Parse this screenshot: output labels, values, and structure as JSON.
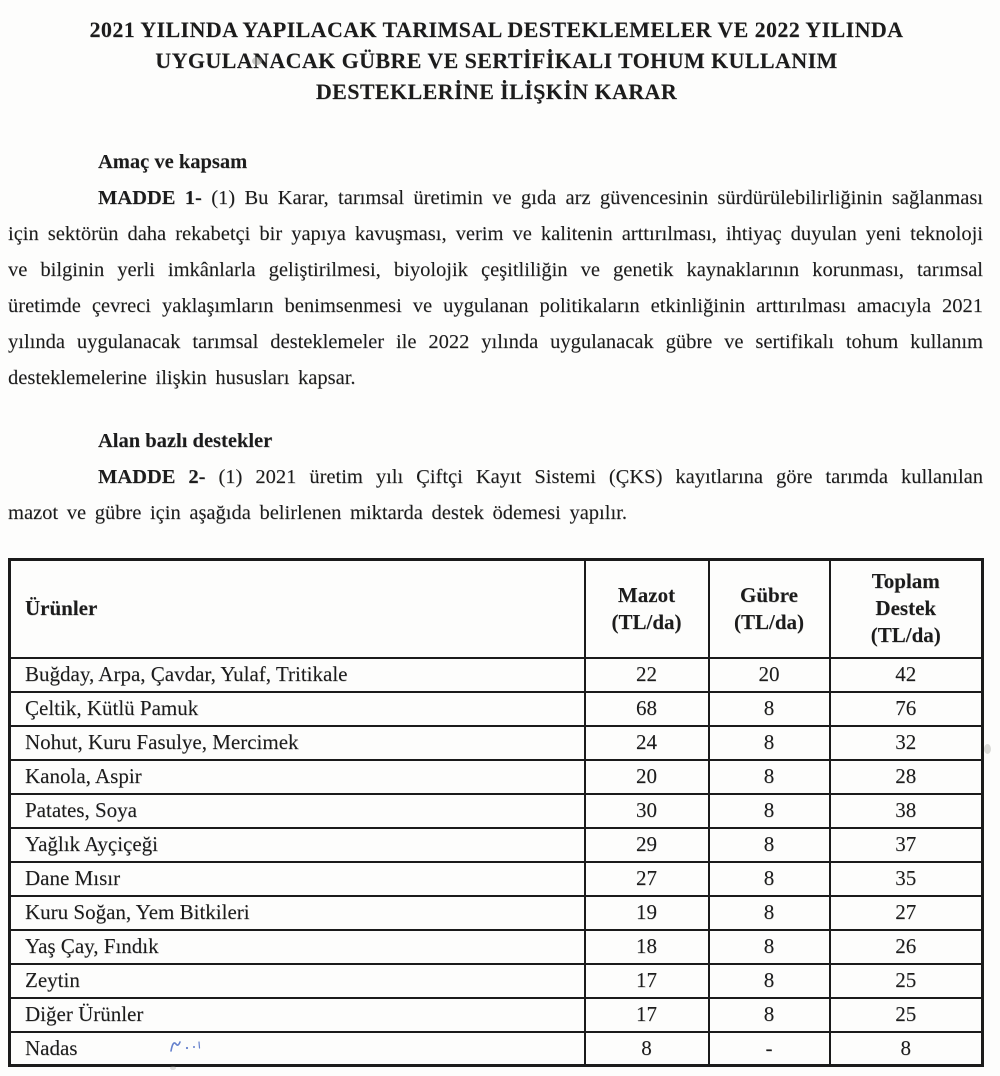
{
  "page": {
    "title_lines": [
      "2021 YILINDA YAPILACAK TARIMSAL DESTEKLEMELER VE 2022 YILINDA",
      "UYGULANACAK GÜBRE VE SERTİFİKALI TOHUM KULLANIM",
      "DESTEKLERİNE İLİŞKİN KARAR"
    ],
    "sections": [
      {
        "heading": "Amaç ve kapsam",
        "lead": "MADDE 1-",
        "body": " (1) Bu Karar, tarımsal üretimin ve gıda arz güvencesinin sürdürülebilirliğinin sağlanması için sektörün daha rekabetçi bir yapıya kavuşması, verim ve kalitenin arttırılması, ihtiyaç duyulan yeni teknoloji ve bilginin yerli imkânlarla geliştirilmesi, biyolojik çeşitliliğin ve genetik kaynaklarının korunması, tarımsal üretimde çevreci yaklaşımların benimsenmesi ve uygulanan politikaların etkinliğinin arttırılması amacıyla 2021 yılında uygulanacak tarımsal desteklemeler ile 2022 yılında uygulanacak gübre ve sertifikalı tohum kullanım desteklemelerine ilişkin hususları kapsar."
      },
      {
        "heading": "Alan bazlı destekler",
        "lead": "MADDE 2-",
        "body": " (1) 2021 üretim yılı Çiftçi Kayıt Sistemi (ÇKS) kayıtlarına göre tarımda kullanılan mazot ve gübre için aşağıda belirlenen miktarda destek ödemesi yapılır."
      }
    ],
    "table": {
      "headers": [
        "Ürünler",
        "Mazot\n(TL/da)",
        "Gübre\n(TL/da)",
        "Toplam\nDestek\n(TL/da)"
      ],
      "rows": [
        [
          "Buğday, Arpa, Çavdar, Yulaf, Tritikale",
          "22",
          "20",
          "42"
        ],
        [
          "Çeltik, Kütlü Pamuk",
          "68",
          "8",
          "76"
        ],
        [
          "Nohut, Kuru Fasulye, Mercimek",
          "24",
          "8",
          "32"
        ],
        [
          "Kanola, Aspir",
          "20",
          "8",
          "28"
        ],
        [
          "Patates, Soya",
          "30",
          "8",
          "38"
        ],
        [
          "Yağlık Ayçiçeği",
          "29",
          "8",
          "37"
        ],
        [
          "Dane Mısır",
          "27",
          "8",
          "35"
        ],
        [
          "Kuru Soğan, Yem Bitkileri",
          "19",
          "8",
          "27"
        ],
        [
          "Yaş Çay, Fındık",
          "18",
          "8",
          "26"
        ],
        [
          "Zeytin",
          "17",
          "8",
          "25"
        ],
        [
          "Diğer Ürünler",
          "17",
          "8",
          "25"
        ],
        [
          "Nadas",
          "8",
          "-",
          "8"
        ]
      ]
    },
    "colors": {
      "ink": "#1c1c1c",
      "page_background": "#fdfdfc",
      "pen_annotation": "#4a6bc4"
    }
  }
}
